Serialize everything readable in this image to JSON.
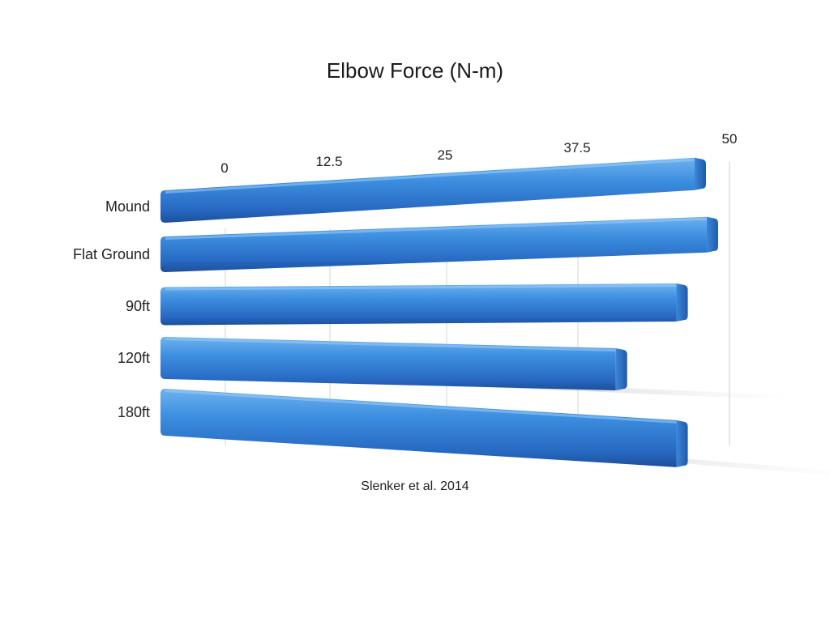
{
  "chart_data": {
    "type": "bar",
    "orientation": "horizontal",
    "title": "Elbow Force (N-m)",
    "source": "Slenker et al. 2014",
    "categories": [
      "Mound",
      "Flat Ground",
      "90ft",
      "120ft",
      "180ft"
    ],
    "values": [
      47.5,
      48.5,
      46,
      41,
      46
    ],
    "xlim": [
      0,
      50
    ],
    "x_ticks": [
      "0",
      "12.5",
      "25",
      "37.5",
      "50"
    ],
    "grid": true,
    "bar_color": "#2f7fd6",
    "legend": "none"
  }
}
